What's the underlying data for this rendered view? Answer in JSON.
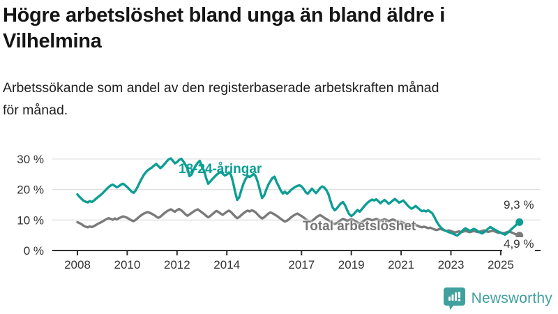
{
  "title": {
    "line1": "Högre arbetslöshet bland unga än bland äldre i",
    "line2": "Vilhelmina"
  },
  "subtitle": {
    "line1": "Arbetssökande som andel av den registerbaserade arbetskraften månad",
    "line2": "för månad."
  },
  "colors": {
    "youth": "#0d9e94",
    "total": "#7a7a7a",
    "grid": "#e0e0e0",
    "axis": "#2e2e2e",
    "tick_text": "#333333",
    "brand": "#3fa09d"
  },
  "chart_data": {
    "type": "line",
    "title": "Arbetssökande som andel av den registerbaserade arbetskraften månad för månad",
    "x_start_year": 2008,
    "frequency": "monthly",
    "grid": "horizontal",
    "ylim": [
      0,
      32
    ],
    "yticks": [
      0,
      10,
      20,
      30
    ],
    "ytick_labels": [
      "0 %",
      "10 %",
      "20 %",
      "30 %"
    ],
    "xticks": [
      2008,
      2010,
      2012,
      2014,
      2017,
      2019,
      2021,
      2023,
      2025
    ],
    "legend_position": "inline-labels",
    "series": [
      {
        "name": "18-24-åringar",
        "color": "#0d9e94",
        "end_label": "9,3 %",
        "values": [
          18.4,
          17.6,
          16.9,
          16.3,
          16.0,
          15.8,
          16.2,
          15.9,
          16.4,
          17.0,
          17.6,
          18.1,
          18.7,
          19.4,
          20.1,
          20.8,
          21.3,
          21.6,
          21.2,
          20.7,
          21.1,
          21.6,
          21.9,
          21.4,
          20.8,
          20.1,
          19.4,
          18.9,
          19.6,
          20.9,
          22.3,
          23.6,
          24.8,
          25.7,
          26.4,
          26.8,
          27.3,
          27.9,
          28.4,
          27.7,
          27.0,
          27.6,
          28.4,
          29.2,
          29.9,
          30.2,
          29.4,
          28.6,
          29.0,
          29.7,
          30.1,
          29.3,
          28.2,
          26.9,
          24.4,
          24.9,
          26.6,
          27.8,
          28.8,
          29.4,
          27.4,
          26.2,
          23.8,
          21.9,
          22.6,
          23.4,
          24.1,
          24.8,
          25.3,
          25.8,
          25.2,
          24.6,
          24.9,
          25.6,
          24.8,
          22.4,
          19.2,
          16.6,
          17.5,
          19.8,
          21.9,
          23.4,
          24.5,
          24.1,
          24.6,
          25.1,
          24.2,
          22.3,
          19.6,
          17.2,
          18.1,
          19.9,
          21.6,
          22.8,
          23.8,
          24.2,
          22.4,
          21.1,
          19.6,
          18.7,
          19.3,
          18.6,
          19.2,
          19.9,
          20.4,
          20.9,
          21.2,
          21.4,
          21.0,
          20.2,
          19.1,
          18.6,
          19.4,
          20.3,
          19.5,
          18.8,
          19.6,
          20.5,
          21.0,
          20.6,
          19.8,
          18.4,
          16.2,
          14.1,
          13.2,
          13.8,
          14.7,
          15.5,
          15.9,
          14.8,
          13.2,
          11.9,
          11.3,
          11.8,
          12.6,
          13.3,
          12.7,
          13.5,
          14.3,
          15.1,
          15.8,
          16.3,
          16.7,
          16.4,
          16.8,
          16.2,
          15.5,
          16.1,
          16.6,
          16.0,
          15.3,
          15.8,
          16.4,
          16.9,
          16.3,
          15.7,
          16.0,
          16.4,
          15.7,
          14.9,
          14.2,
          13.7,
          14.1,
          14.6,
          14.0,
          13.4,
          12.9,
          13.1,
          12.8,
          13.2,
          12.7,
          12.2,
          11.0,
          9.6,
          8.5,
          7.7,
          7.0,
          6.6,
          6.3,
          6.0,
          5.8,
          5.5,
          5.2,
          4.9,
          5.4,
          6.1,
          6.8,
          7.3,
          6.9,
          6.4,
          6.7,
          7.1,
          6.8,
          6.3,
          5.9,
          5.6,
          6.0,
          6.6,
          7.2,
          7.7,
          7.3,
          6.9,
          6.5,
          6.1,
          5.8,
          5.5,
          5.2,
          5.6,
          6.2,
          6.9,
          7.5,
          8.1,
          8.8,
          9.3
        ]
      },
      {
        "name": "Total arbetslöshet",
        "color": "#7a7a7a",
        "end_label": "4,9 %",
        "values": [
          9.3,
          9.0,
          8.6,
          8.1,
          7.8,
          7.6,
          7.9,
          7.7,
          8.0,
          8.4,
          8.8,
          9.1,
          9.5,
          9.9,
          10.3,
          10.6,
          10.4,
          10.1,
          10.5,
          10.2,
          10.6,
          10.9,
          11.2,
          11.0,
          10.7,
          10.3,
          9.9,
          9.6,
          10.0,
          10.6,
          11.2,
          11.7,
          12.1,
          12.4,
          12.6,
          12.3,
          12.0,
          11.6,
          11.1,
          10.7,
          11.1,
          11.7,
          12.3,
          12.8,
          13.2,
          13.5,
          13.1,
          12.7,
          13.3,
          13.6,
          13.2,
          12.6,
          11.9,
          11.4,
          11.8,
          12.3,
          12.8,
          13.2,
          13.5,
          13.0,
          12.5,
          12.0,
          11.4,
          10.9,
          11.3,
          11.9,
          12.5,
          13.0,
          12.6,
          12.1,
          11.7,
          12.2,
          12.7,
          13.1,
          12.6,
          11.9,
          11.2,
          10.6,
          11.0,
          11.6,
          12.2,
          12.7,
          13.1,
          12.8,
          13.2,
          12.9,
          12.4,
          11.7,
          11.0,
          10.5,
          10.9,
          11.5,
          12.1,
          12.5,
          12.2,
          11.8,
          11.4,
          10.9,
          10.4,
          9.9,
          9.5,
          9.8,
          10.3,
          10.9,
          11.4,
          11.8,
          12.1,
          11.7,
          11.3,
          10.8,
          10.3,
          9.8,
          9.4,
          9.7,
          10.2,
          10.8,
          11.3,
          11.6,
          11.2,
          10.7,
          10.3,
          9.9,
          9.4,
          9.0,
          8.7,
          9.0,
          9.5,
          10.0,
          10.4,
          10.1,
          9.7,
          10.0,
          10.3,
          10.0,
          9.6,
          9.2,
          8.9,
          9.2,
          9.7,
          10.1,
          10.4,
          10.2,
          9.9,
          10.1,
          10.4,
          10.1,
          9.7,
          10.0,
          10.3,
          10.0,
          9.6,
          9.9,
          10.2,
          9.9,
          9.5,
          9.2,
          9.4,
          9.1,
          8.7,
          8.4,
          8.1,
          8.3,
          8.6,
          8.4,
          8.1,
          7.8,
          7.6,
          7.8,
          7.6,
          7.3,
          7.5,
          7.2,
          6.9,
          6.7,
          6.9,
          7.1,
          6.8,
          6.6,
          6.4,
          6.6,
          6.4,
          6.1,
          5.9,
          6.1,
          6.3,
          6.0,
          6.2,
          6.4,
          6.2,
          6.0,
          6.2,
          6.4,
          6.2,
          6.0,
          6.2,
          6.4,
          6.6,
          6.3,
          6.1,
          6.3,
          6.5,
          6.3,
          6.0,
          5.8,
          5.9,
          5.7,
          5.8,
          6.0,
          6.2,
          6.0,
          5.7,
          5.4,
          5.1,
          4.9
        ]
      }
    ]
  },
  "branding": {
    "name": "Newsworthy"
  }
}
